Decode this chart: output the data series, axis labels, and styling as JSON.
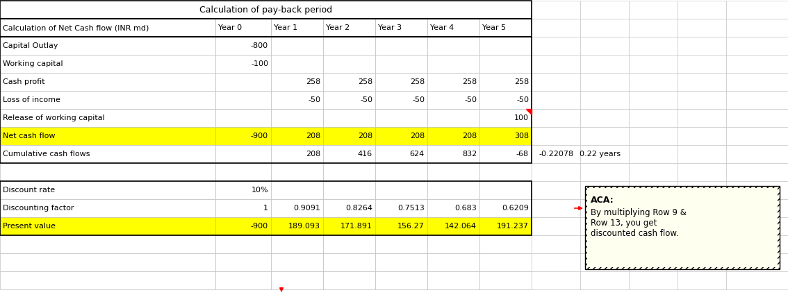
{
  "title": "Calculation of pay-back period",
  "col_headers": [
    "Calculation of Net Cash flow (INR md)",
    "Year 0",
    "Year 1",
    "Year 2",
    "Year 3",
    "Year 4",
    "Year 5"
  ],
  "rows": [
    {
      "label": "Capital Outlay",
      "values": [
        "-800",
        "",
        "",
        "",
        "",
        ""
      ],
      "highlight": false
    },
    {
      "label": "Working capital",
      "values": [
        "-100",
        "",
        "",
        "",
        "",
        ""
      ],
      "highlight": false
    },
    {
      "label": "Cash profit",
      "values": [
        "",
        "258",
        "258",
        "258",
        "258",
        "258"
      ],
      "highlight": false
    },
    {
      "label": "Loss of income",
      "values": [
        "",
        "-50",
        "-50",
        "-50",
        "-50",
        "-50"
      ],
      "highlight": false
    },
    {
      "label": "Release of working capital",
      "values": [
        "",
        "",
        "",
        "",
        "",
        "100"
      ],
      "highlight": false
    },
    {
      "label": "Net cash flow",
      "values": [
        "-900",
        "208",
        "208",
        "208",
        "208",
        "308"
      ],
      "highlight": true
    },
    {
      "label": "Cumulative cash flows",
      "values": [
        "",
        "208",
        "416",
        "624",
        "832",
        "-68"
      ],
      "highlight": false
    }
  ],
  "extra_cols_row6": [
    "-0.22078",
    "0.22 years"
  ],
  "bottom_rows": [
    {
      "label": "Discount rate",
      "values": [
        "10%",
        "",
        "",
        "",
        "",
        ""
      ],
      "highlight": false
    },
    {
      "label": "Discounting factor",
      "values": [
        "1",
        "0.9091",
        "0.8264",
        "0.7513",
        "0.683",
        "0.6209"
      ],
      "highlight": false
    },
    {
      "label": "Present value",
      "values": [
        "-900",
        "189.093",
        "171.891",
        "156.27",
        "142.064",
        "191.237"
      ],
      "highlight": true
    }
  ],
  "highlight_color": "#FFFF00",
  "grid_color": "#C0C0C0",
  "border_color": "#000000",
  "bg_color": "#FFFFFF",
  "annotation": {
    "title": "ACA:",
    "body": "By multiplying Row 9 &\nRow 13, you get\ndiscounted cash flow.",
    "bg": "#FFFFF0"
  }
}
